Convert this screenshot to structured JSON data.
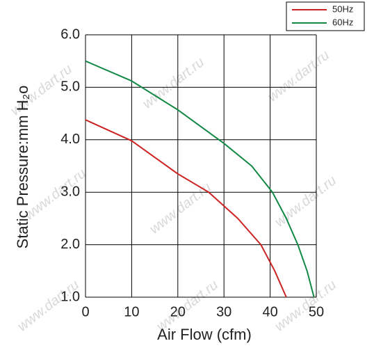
{
  "chart_data": {
    "type": "line",
    "x_label": "Air Flow (cfm)",
    "y_label": "Static Pressure:mm H₂o",
    "watermark": "www.dart.ru",
    "series": [
      {
        "name": "50Hz",
        "color": "#cc2222",
        "x": [
          0,
          10,
          20,
          26.7,
          33,
          38,
          41,
          43.5
        ],
        "values": [
          4.38,
          3.98,
          3.35,
          3.0,
          2.5,
          2.0,
          1.5,
          1.0
        ]
      },
      {
        "name": "60Hz",
        "color": "#118844",
        "x": [
          0,
          10,
          20,
          30,
          36,
          40.5,
          43.5,
          46,
          48,
          49.5
        ],
        "values": [
          5.5,
          5.12,
          4.57,
          3.93,
          3.5,
          3.0,
          2.5,
          2.0,
          1.5,
          1.0
        ]
      }
    ],
    "xlim": [
      0,
      50
    ],
    "xticks": [
      0,
      10,
      20,
      30,
      40,
      50
    ],
    "ylim": [
      1,
      6
    ],
    "yticks": [
      {
        "value": 1,
        "label": "1.0"
      },
      {
        "value": 2,
        "label": "2.0"
      },
      {
        "value": 3,
        "label": "3.0"
      },
      {
        "value": 4,
        "label": "4.0"
      },
      {
        "value": 5,
        "label": "5.0"
      },
      {
        "value": 6,
        "label": "6.0"
      }
    ],
    "grid": true,
    "legend": "top-right"
  }
}
